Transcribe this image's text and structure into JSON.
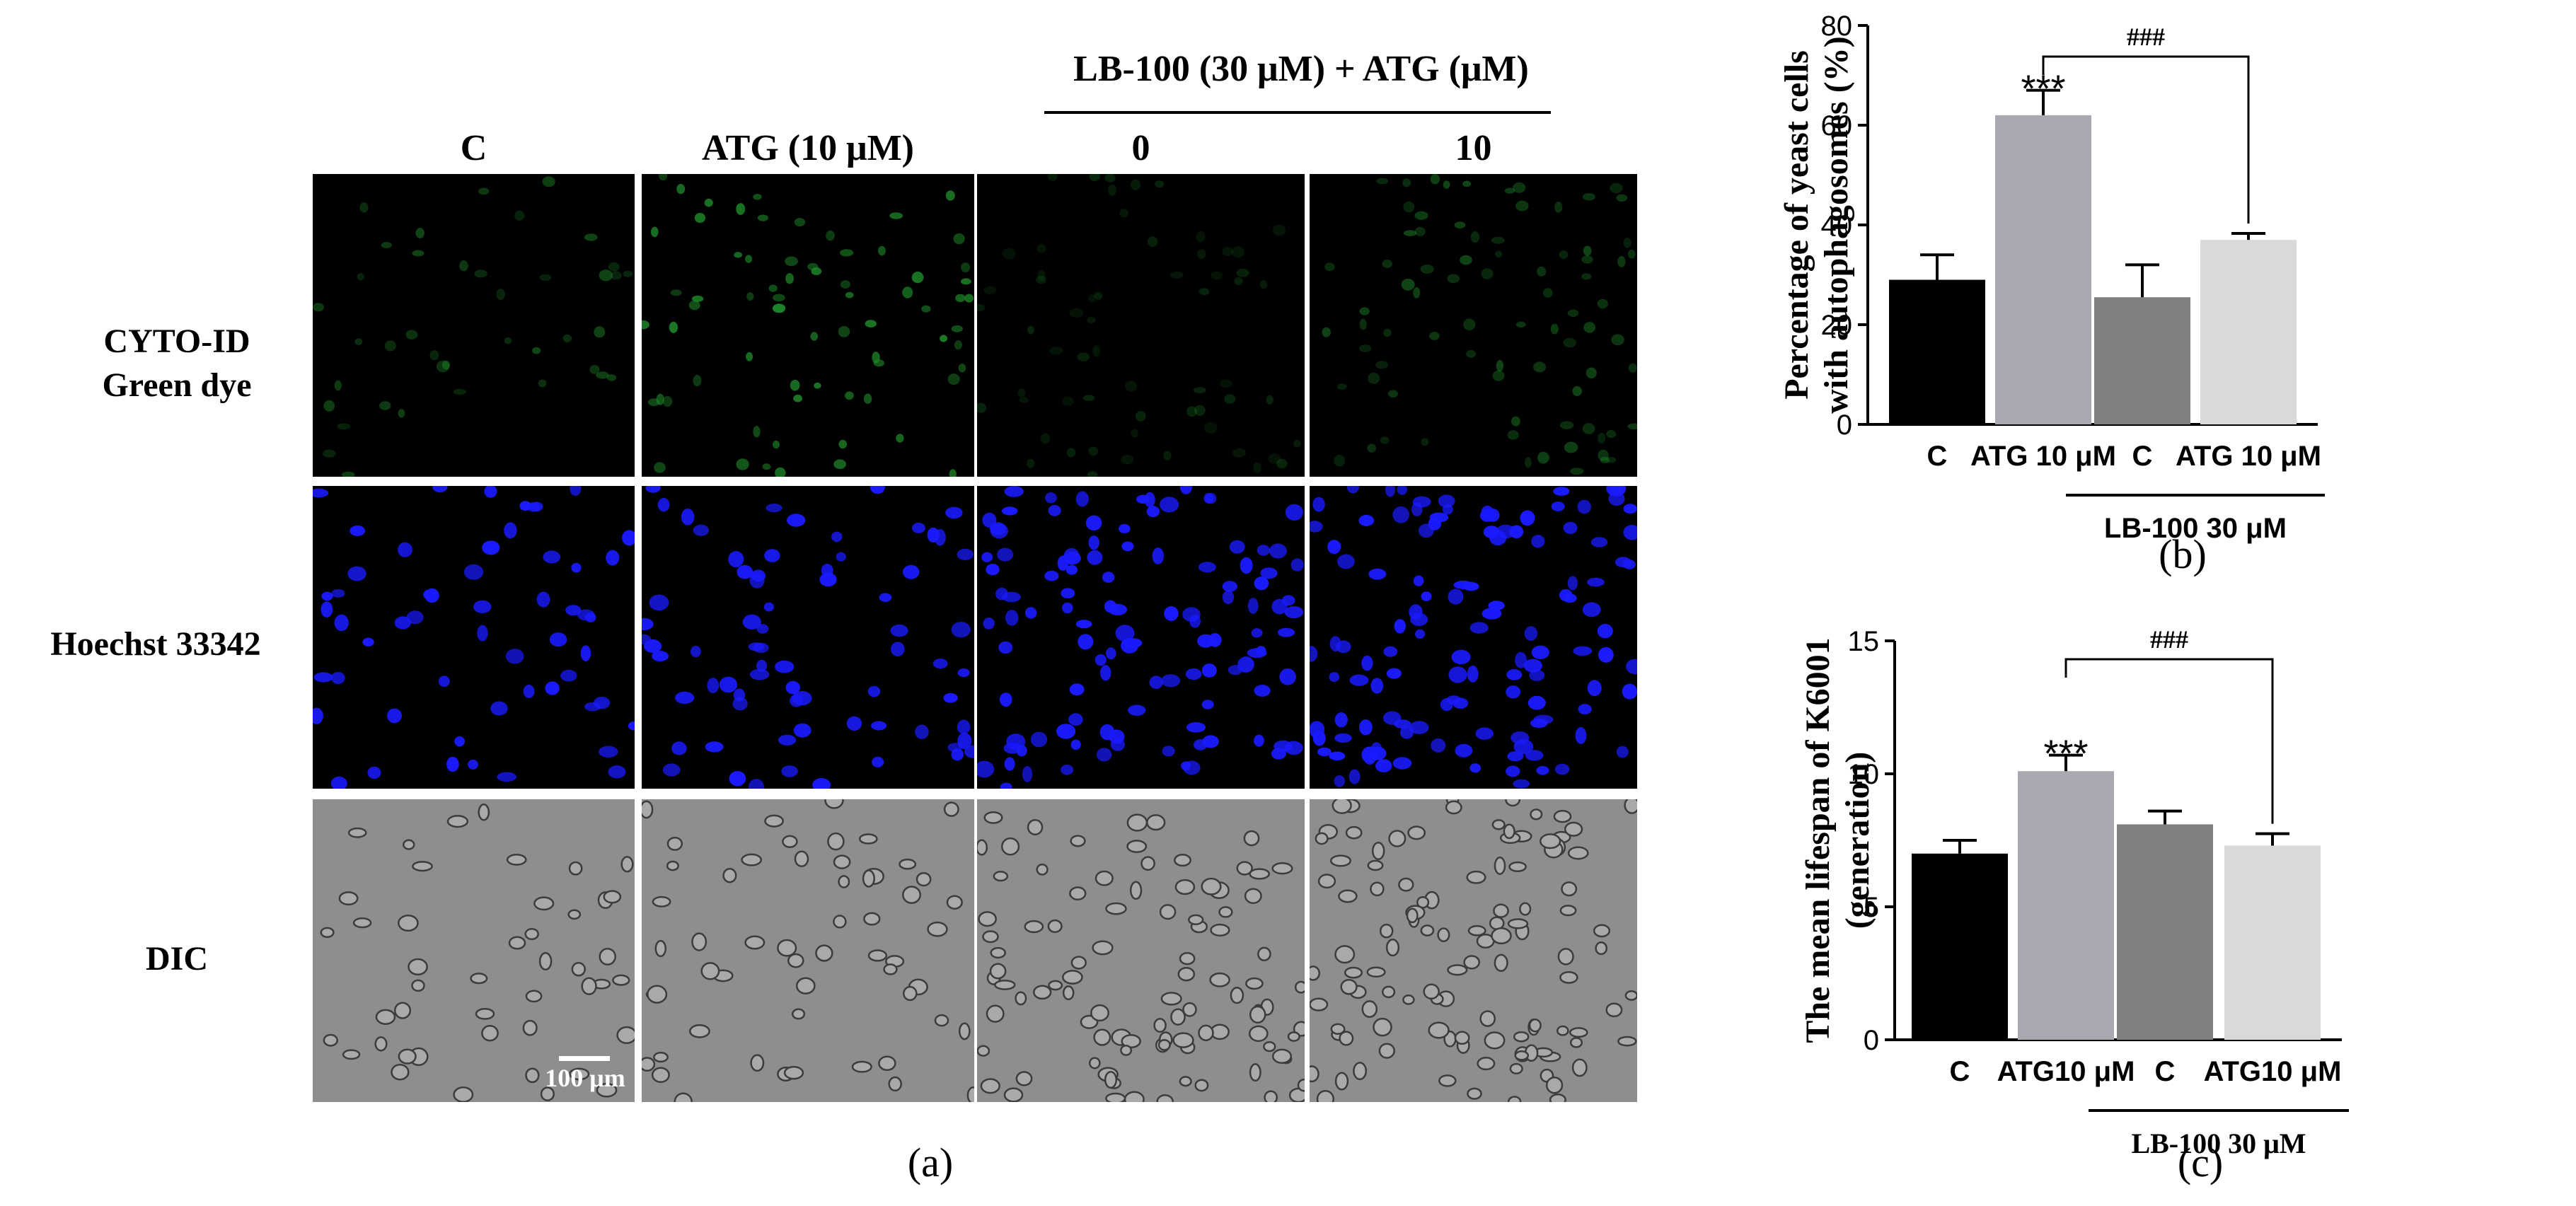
{
  "figure": {
    "panel_a": {
      "group_header": "LB-100 (30 μM) + ATG (μM)",
      "column_headers": [
        "C",
        "ATG (10 μM)",
        "0",
        "10"
      ],
      "row_labels": [
        {
          "line1": "CYTO-ID",
          "line2": "Green dye"
        },
        {
          "line1": "Hoechst 33342",
          "line2": ""
        },
        {
          "line1": "DIC",
          "line2": ""
        }
      ],
      "scale_bar_label": "100 μm",
      "letter": "(a)",
      "colors": {
        "green_channel": "#1f8a2a",
        "blue_channel": "#1a1aff",
        "dic_background": "#8e8e8e"
      }
    },
    "panel_b_letter": "(b)",
    "panel_c_letter": "(c)"
  },
  "chart_data": [
    {
      "type": "bar",
      "id": "b",
      "categories": [
        "C",
        "ATG 10 μM",
        "C",
        "ATG 10 μM"
      ],
      "values": [
        29,
        62,
        25.5,
        37
      ],
      "errors": [
        5,
        5,
        6.5,
        1.3
      ],
      "colors": [
        "#000000",
        "#a8a8b0",
        "#808080",
        "#d9d9d9"
      ],
      "ylabel_line1": "Percentage of yeast cells",
      "ylabel_line2": "with autophagosomes (%)",
      "ylim": [
        0,
        80
      ],
      "yticks": [
        0,
        20,
        40,
        60,
        80
      ],
      "significance": {
        "bar_index": 1,
        "label": "***"
      },
      "comparison": {
        "from": 1,
        "to": 3,
        "label": "###"
      },
      "group_label": "LB-100 30 μM",
      "group_range": [
        2,
        3
      ]
    },
    {
      "type": "bar",
      "id": "c",
      "categories": [
        "C",
        "ATG10 μM",
        "C",
        "ATG10 μM"
      ],
      "values": [
        7,
        10.1,
        8.1,
        7.3
      ],
      "errors": [
        0.5,
        0.6,
        0.5,
        0.45
      ],
      "colors": [
        "#000000",
        "#a8a8b0",
        "#808080",
        "#d9d9d9"
      ],
      "ylabel_line1": "The mean lifespan of K6001",
      "ylabel_line2": "(generation)",
      "ylim": [
        0,
        15
      ],
      "yticks": [
        0,
        5,
        10,
        15
      ],
      "significance": {
        "bar_index": 1,
        "label": "***"
      },
      "comparison": {
        "from": 1,
        "to": 3,
        "label": "###"
      },
      "group_label": "LB-100 30 μM",
      "group_range": [
        2,
        3
      ]
    }
  ]
}
